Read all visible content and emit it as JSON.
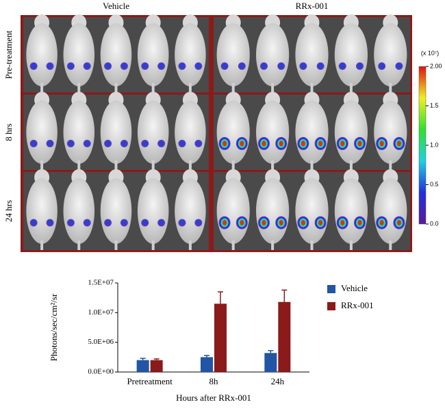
{
  "panel": {
    "columns": [
      "Vehicle",
      "RRx-001"
    ],
    "rows": [
      "Pre-treatment",
      "8 hrs",
      "24 hrs"
    ],
    "colorbar": {
      "unit": "(x 10⁷)",
      "lim": [
        0,
        2
      ],
      "ticks": [
        {
          "value": 2,
          "label": "2.00"
        },
        {
          "value": 1.5,
          "label": "1.5"
        },
        {
          "value": 1,
          "label": "1.0"
        },
        {
          "value": 0.5,
          "label": "0.5"
        },
        {
          "value": 0,
          "label": "0.0"
        }
      ]
    }
  },
  "chart_data": {
    "type": "bar",
    "ylabel": "Photons/sec/cm²/sr",
    "xlabel": "Hours after RRx-001",
    "categories": [
      "Pretreatment",
      "8h",
      "24h"
    ],
    "series": [
      {
        "name": "Vehicle",
        "color": "#2255a4",
        "values": [
          2000000,
          2500000,
          3200000
        ],
        "errors": [
          300000,
          300000,
          400000
        ]
      },
      {
        "name": "RRx-001",
        "color": "#8b1a1a",
        "values": [
          2000000,
          11500000,
          11800000
        ],
        "errors": [
          200000,
          2000000,
          2000000
        ]
      }
    ],
    "ylim": [
      0,
      15000000
    ],
    "yticks": [
      {
        "value": 0,
        "label": "0.0E+00"
      },
      {
        "value": 5000000,
        "label": "5.0E+06"
      },
      {
        "value": 10000000,
        "label": "1.0E+07"
      },
      {
        "value": 15000000,
        "label": "1.5E+07"
      }
    ],
    "legend": "right"
  }
}
